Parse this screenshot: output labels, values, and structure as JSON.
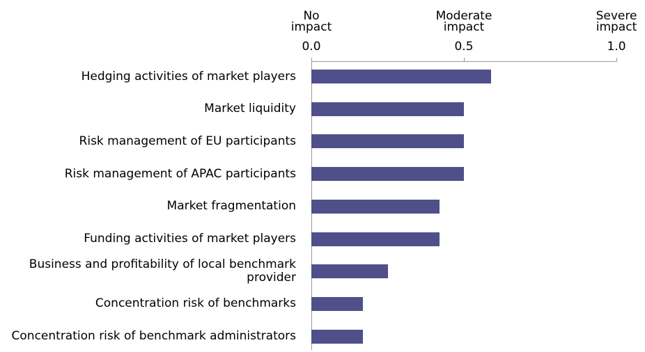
{
  "chart_data": {
    "type": "bar",
    "orientation": "horizontal",
    "tick_captions": [
      "No impact",
      "Moderate impact",
      "Severe impact"
    ],
    "categories": [
      "Hedging activities of market players",
      "Market liquidity",
      "Risk management of EU participants",
      "Risk management of APAC participants",
      "Market fragmentation",
      "Funding activities of market players",
      "Business and profitability of local benchmark provider",
      "Concentration risk of benchmarks",
      "Concentration risk of benchmark administrators"
    ],
    "values": [
      0.59,
      0.5,
      0.5,
      0.5,
      0.42,
      0.42,
      0.25,
      0.17,
      0.17
    ],
    "color": "#4f4f8a",
    "xlim": [
      0,
      1
    ],
    "xticks": [
      {
        "value": 0,
        "label": "0.0"
      },
      0.5,
      {
        "value": 1,
        "label": "1.0"
      }
    ]
  }
}
